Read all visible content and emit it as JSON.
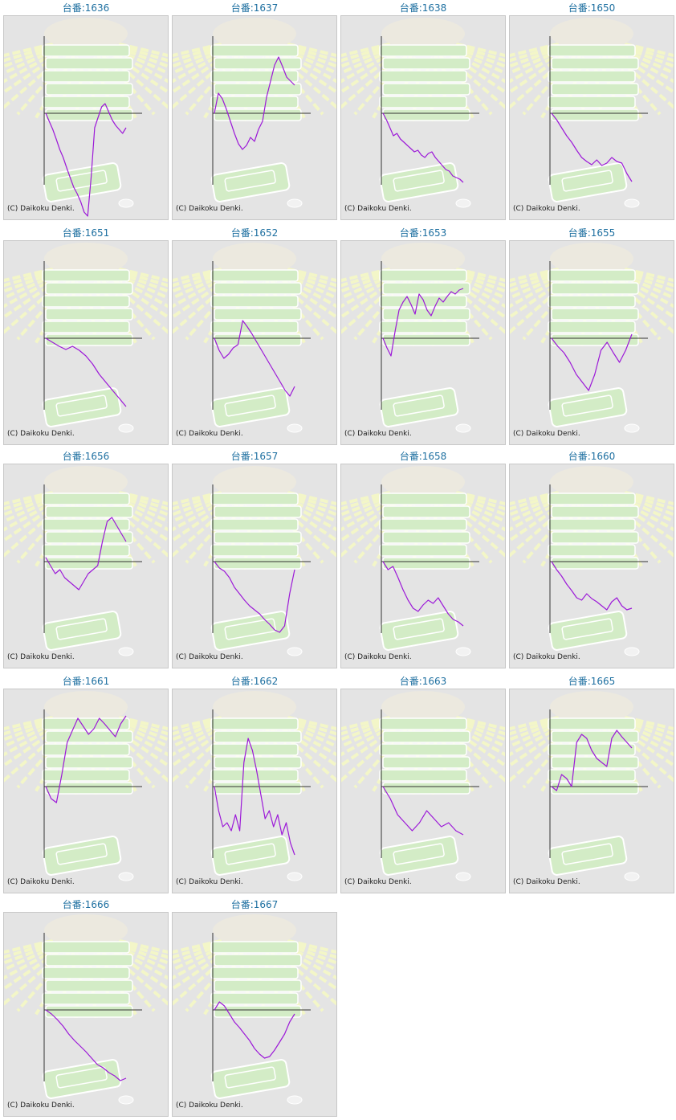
{
  "page": {
    "copyright_text": "(C) Daikoku Denki."
  },
  "colors": {
    "series_line": "#9c19d8",
    "axis_line": "#333333",
    "title_text": "#1d6fa0",
    "panel_bg": "#e4e4e4",
    "ray_color": "#f3f6c8",
    "slot_green": "#d3ecc6"
  },
  "chart_data": [
    {
      "type": "line",
      "title": "台番:1636",
      "values": [
        0,
        -10,
        -20,
        -32,
        -45,
        -55,
        -68,
        -80,
        -92,
        -100,
        -110,
        -123,
        -128,
        -80,
        -18,
        -5,
        8,
        12,
        2,
        -8,
        -15,
        -20,
        -25,
        -18
      ]
    },
    {
      "type": "line",
      "title": "台番:1637",
      "values": [
        0,
        25,
        18,
        5,
        -10,
        -25,
        -38,
        -45,
        -40,
        -30,
        -35,
        -20,
        -10,
        20,
        40,
        60,
        70,
        58,
        45,
        40,
        35
      ]
    },
    {
      "type": "line",
      "title": "台番:1638",
      "values": [
        0,
        -8,
        -18,
        -28,
        -25,
        -32,
        -36,
        -40,
        -44,
        -48,
        -46,
        -52,
        -55,
        -50,
        -48,
        -55,
        -60,
        -65,
        -70,
        -72,
        -78,
        -80,
        -82,
        -86
      ]
    },
    {
      "type": "line",
      "title": "台番:1650",
      "values": [
        0,
        -8,
        -18,
        -28,
        -36,
        -46,
        -55,
        -60,
        -64,
        -58,
        -65,
        -62,
        -55,
        -60,
        -62,
        -75,
        -85
      ]
    },
    {
      "type": "line",
      "title": "台番:1651",
      "values": [
        0,
        -5,
        -10,
        -14,
        -10,
        -15,
        -22,
        -32,
        -45,
        -55,
        -65,
        -75,
        -85
      ]
    },
    {
      "type": "line",
      "title": "台番:1652",
      "values": [
        0,
        -15,
        -25,
        -20,
        -12,
        -8,
        22,
        14,
        5,
        -5,
        -15,
        -25,
        -35,
        -45,
        -55,
        -65,
        -72,
        -60
      ]
    },
    {
      "type": "line",
      "title": "台番:1653",
      "values": [
        0,
        -12,
        -22,
        8,
        35,
        45,
        52,
        42,
        30,
        55,
        48,
        35,
        28,
        40,
        50,
        45,
        52,
        58,
        55,
        60,
        62
      ]
    },
    {
      "type": "line",
      "title": "台番:1655",
      "values": [
        0,
        -10,
        -18,
        -30,
        -45,
        -55,
        -65,
        -45,
        -15,
        -5,
        -18,
        -30,
        -15,
        5
      ]
    },
    {
      "type": "line",
      "title": "台番:1656",
      "values": [
        5,
        -5,
        -15,
        -10,
        -20,
        -25,
        -30,
        -35,
        -25,
        -15,
        -10,
        -5,
        25,
        50,
        55,
        45,
        35,
        25
      ]
    },
    {
      "type": "line",
      "title": "台番:1657",
      "values": [
        0,
        -8,
        -12,
        -20,
        -32,
        -40,
        -48,
        -55,
        -60,
        -65,
        -72,
        -78,
        -85,
        -88,
        -80,
        -40,
        -10
      ]
    },
    {
      "type": "line",
      "title": "台番:1658",
      "values": [
        0,
        -10,
        -6,
        -20,
        -35,
        -48,
        -58,
        -62,
        -54,
        -48,
        -52,
        -45,
        -55,
        -65,
        -72,
        -75,
        -80
      ]
    },
    {
      "type": "line",
      "title": "台番:1660",
      "values": [
        0,
        -10,
        -18,
        -28,
        -36,
        -45,
        -48,
        -40,
        -46,
        -50,
        -55,
        -60,
        -50,
        -45,
        -55,
        -60,
        -58
      ]
    },
    {
      "type": "line",
      "title": "台番:1661",
      "values": [
        0,
        -15,
        -20,
        15,
        55,
        70,
        85,
        75,
        65,
        72,
        85,
        78,
        70,
        62,
        78,
        88
      ]
    },
    {
      "type": "line",
      "title": "台番:1662",
      "values": [
        0,
        -30,
        -50,
        -45,
        -55,
        -35,
        -55,
        30,
        60,
        45,
        20,
        -10,
        -40,
        -30,
        -50,
        -35,
        -60,
        -45,
        -70,
        -85
      ]
    },
    {
      "type": "line",
      "title": "台番:1663",
      "values": [
        0,
        -15,
        -35,
        -45,
        -55,
        -45,
        -30,
        -40,
        -50,
        -45,
        -55,
        -60
      ]
    },
    {
      "type": "line",
      "title": "台番:1665",
      "values": [
        0,
        -5,
        15,
        10,
        0,
        55,
        65,
        60,
        45,
        35,
        30,
        25,
        60,
        70,
        62,
        55,
        48
      ]
    },
    {
      "type": "line",
      "title": "台番:1666",
      "values": [
        0,
        -5,
        -12,
        -20,
        -30,
        -38,
        -45,
        -52,
        -60,
        -68,
        -72,
        -78,
        -82,
        -88,
        -85
      ]
    },
    {
      "type": "line",
      "title": "台番:1667",
      "values": [
        0,
        10,
        5,
        -5,
        -15,
        -22,
        -30,
        -38,
        -48,
        -55,
        -60,
        -58,
        -50,
        -40,
        -30,
        -15,
        -5
      ]
    }
  ]
}
